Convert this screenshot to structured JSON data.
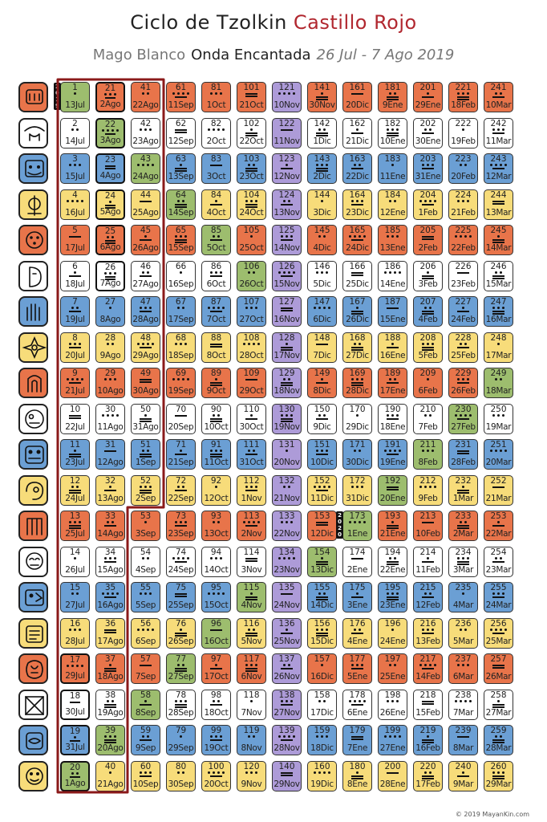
{
  "title": {
    "part1": "Ciclo de Tzolkin",
    "part2": "Castillo Rojo"
  },
  "subtitle": {
    "part1": "Mago Blanco",
    "part2": "Onda Encantada",
    "part3": "26 Jul - 7 Ago 2019"
  },
  "colors": {
    "red": "#e8744a",
    "white": "#ffffff",
    "blue": "#6b9fd4",
    "yellow": "#f7dc7a",
    "green": "#9dbd6e",
    "purple": "#ad9bd8",
    "wave": "#8b1a1a",
    "title_accent": "#b1272f",
    "subtitle_gray": "#777777"
  },
  "year_labels": [
    {
      "text": "2019",
      "col": 0,
      "row": 0
    },
    {
      "text": "2020",
      "col": 8,
      "row": 12
    }
  ],
  "today_kins": [
    21,
    22,
    23,
    24,
    25,
    26,
    17,
    18,
    19,
    20
  ],
  "seals": [
    {
      "name": "red-dragon-icon",
      "color": "red"
    },
    {
      "name": "white-wind-icon",
      "color": "white"
    },
    {
      "name": "blue-night-icon",
      "color": "blue"
    },
    {
      "name": "yellow-seed-icon",
      "color": "yellow"
    },
    {
      "name": "red-serpent-icon",
      "color": "red"
    },
    {
      "name": "white-worldbridger-icon",
      "color": "white"
    },
    {
      "name": "blue-hand-icon",
      "color": "blue"
    },
    {
      "name": "yellow-star-icon",
      "color": "yellow"
    },
    {
      "name": "red-moon-icon",
      "color": "red"
    },
    {
      "name": "white-dog-icon",
      "color": "white"
    },
    {
      "name": "blue-monkey-icon",
      "color": "blue"
    },
    {
      "name": "yellow-human-icon",
      "color": "yellow"
    },
    {
      "name": "red-skywalker-icon",
      "color": "red"
    },
    {
      "name": "white-wizard-icon",
      "color": "white"
    },
    {
      "name": "blue-eagle-icon",
      "color": "blue"
    },
    {
      "name": "yellow-warrior-icon",
      "color": "yellow"
    },
    {
      "name": "red-earth-icon",
      "color": "red"
    },
    {
      "name": "white-mirror-icon",
      "color": "white"
    },
    {
      "name": "blue-storm-icon",
      "color": "blue"
    },
    {
      "name": "yellow-sun-icon",
      "color": "yellow"
    }
  ],
  "column_colors": [
    [
      "green",
      "white",
      "blue",
      "yellow",
      "red",
      "white",
      "blue",
      "yellow",
      "red",
      "white",
      "blue",
      "yellow",
      "red",
      "white",
      "blue",
      "yellow",
      "red",
      "white",
      "blue",
      "green"
    ],
    [
      "red",
      "green",
      "blue",
      "yellow",
      "red",
      "white",
      "blue",
      "yellow",
      "red",
      "white",
      "blue",
      "yellow",
      "red",
      "white",
      "blue",
      "yellow",
      "red",
      "white",
      "green",
      "yellow"
    ],
    [
      "red",
      "white",
      "green",
      "yellow",
      "red",
      "white",
      "blue",
      "yellow",
      "red",
      "white",
      "blue",
      "yellow",
      "red",
      "white",
      "blue",
      "yellow",
      "red",
      "green",
      "blue",
      "yellow"
    ],
    [
      "red",
      "white",
      "blue",
      "green",
      "red",
      "white",
      "blue",
      "yellow",
      "red",
      "white",
      "blue",
      "yellow",
      "red",
      "white",
      "blue",
      "yellow",
      "green",
      "white",
      "blue",
      "yellow"
    ],
    [
      "red",
      "white",
      "blue",
      "yellow",
      "green",
      "white",
      "blue",
      "yellow",
      "red",
      "white",
      "blue",
      "yellow",
      "red",
      "white",
      "blue",
      "green",
      "red",
      "white",
      "blue",
      "yellow"
    ],
    [
      "red",
      "white",
      "blue",
      "yellow",
      "red",
      "green",
      "blue",
      "yellow",
      "red",
      "white",
      "blue",
      "yellow",
      "red",
      "white",
      "green",
      "yellow",
      "red",
      "white",
      "blue",
      "yellow"
    ],
    [
      "purple",
      "purple",
      "purple",
      "purple",
      "purple",
      "purple",
      "purple",
      "purple",
      "purple",
      "purple",
      "purple",
      "purple",
      "purple",
      "purple",
      "purple",
      "purple",
      "purple",
      "purple",
      "purple",
      "purple"
    ],
    [
      "red",
      "white",
      "blue",
      "yellow",
      "red",
      "white",
      "blue",
      "yellow",
      "red",
      "white",
      "blue",
      "yellow",
      "red",
      "green",
      "blue",
      "yellow",
      "red",
      "white",
      "blue",
      "yellow"
    ],
    [
      "red",
      "white",
      "blue",
      "yellow",
      "red",
      "white",
      "blue",
      "yellow",
      "red",
      "white",
      "blue",
      "yellow",
      "green",
      "white",
      "blue",
      "yellow",
      "red",
      "white",
      "blue",
      "yellow"
    ],
    [
      "red",
      "white",
      "blue",
      "yellow",
      "red",
      "white",
      "blue",
      "yellow",
      "red",
      "white",
      "blue",
      "green",
      "red",
      "white",
      "blue",
      "yellow",
      "red",
      "white",
      "blue",
      "yellow"
    ],
    [
      "red",
      "white",
      "blue",
      "yellow",
      "red",
      "white",
      "blue",
      "yellow",
      "red",
      "white",
      "green",
      "yellow",
      "red",
      "white",
      "blue",
      "yellow",
      "red",
      "white",
      "blue",
      "yellow"
    ],
    [
      "red",
      "white",
      "blue",
      "yellow",
      "red",
      "white",
      "blue",
      "yellow",
      "red",
      "green",
      "blue",
      "yellow",
      "red",
      "white",
      "blue",
      "yellow",
      "red",
      "white",
      "blue",
      "yellow"
    ],
    [
      "red",
      "white",
      "blue",
      "yellow",
      "red",
      "white",
      "blue",
      "yellow",
      "green",
      "white",
      "blue",
      "yellow",
      "red",
      "white",
      "blue",
      "yellow",
      "red",
      "white",
      "blue",
      "yellow"
    ]
  ],
  "column_dates": [
    [
      "13Jul",
      "14Jul",
      "15Jul",
      "16Jul",
      "17Jul",
      "18Jul",
      "19Jul",
      "20Jul",
      "21Jul",
      "22Jul",
      "23Jul",
      "24Jul",
      "25Jul",
      "26Jul",
      "27Jul",
      "28Jul",
      "29Jul",
      "30Jul",
      "31Jul",
      "1Ago"
    ],
    [
      "2Ago",
      "3Ago",
      "4Ago",
      "5Ago",
      "6Ago",
      "7Ago",
      "8Ago",
      "9Ago",
      "10Ago",
      "11Ago",
      "12Ago",
      "13Ago",
      "14Ago",
      "15Ago",
      "16Ago",
      "17Ago",
      "18Ago",
      "19Ago",
      "20Ago",
      "21Ago"
    ],
    [
      "22Ago",
      "23Ago",
      "24Ago",
      "25Ago",
      "26Ago",
      "27Ago",
      "28Ago",
      "29Ago",
      "30Ago",
      "31Ago",
      "1Sep",
      "2Sep",
      "3Sep",
      "4Sep",
      "5Sep",
      "6Sep",
      "7Sep",
      "8Sep",
      "9Sep",
      "10Sep"
    ],
    [
      "11Sep",
      "12Sep",
      "13Sep",
      "14Sep",
      "15Sep",
      "16Sep",
      "17Sep",
      "18Sep",
      "19Sep",
      "20Sep",
      "21Sep",
      "22Sep",
      "23Sep",
      "24Sep",
      "25Sep",
      "26Sep",
      "27Sep",
      "28Sep",
      "29Sep",
      "30Sep"
    ],
    [
      "1Oct",
      "2Oct",
      "3Oct",
      "4Oct",
      "5Oct",
      "6Oct",
      "7Oct",
      "8Oct",
      "9Oct",
      "10Oct",
      "11Oct",
      "12Oct",
      "13Oct",
      "14Oct",
      "15Oct",
      "16Oct",
      "17Oct",
      "18Oct",
      "19Oct",
      "20Oct"
    ],
    [
      "21Oct",
      "22Oct",
      "23Oct",
      "24Oct",
      "25Oct",
      "26Oct",
      "27Oct",
      "28Oct",
      "29Oct",
      "30Oct",
      "31Oct",
      "1Nov",
      "2Nov",
      "3Nov",
      "4Nov",
      "5Nov",
      "6Nov",
      "7Nov",
      "8Nov",
      "9Nov"
    ],
    [
      "10Nov",
      "11Nov",
      "12Nov",
      "13Nov",
      "14Nov",
      "15Nov",
      "16Nov",
      "17Nov",
      "18Nov",
      "19Nov",
      "20Nov",
      "21Nov",
      "22Nov",
      "23Nov",
      "24Nov",
      "25Nov",
      "26Nov",
      "27Nov",
      "28Nov",
      "29Nov"
    ],
    [
      "30Nov",
      "1Dic",
      "2Dic",
      "3Dic",
      "4Dic",
      "5Dic",
      "6Dic",
      "7Dic",
      "8Dic",
      "9Dic",
      "10Dic",
      "11Dic",
      "12Dic",
      "13Dic",
      "14Dic",
      "15Dic",
      "16Dic",
      "17Dic",
      "18Dic",
      "19Dic"
    ],
    [
      "20Dic",
      "21Dic",
      "22Dic",
      "23Dic",
      "24Dic",
      "25Dic",
      "26Dic",
      "27Dic",
      "28Dic",
      "29Dic",
      "30Dic",
      "31Dic",
      "1Ene",
      "2Ene",
      "3Ene",
      "4Ene",
      "5Ene",
      "6Ene",
      "7Ene",
      "8Ene"
    ],
    [
      "9Ene",
      "10Ene",
      "11Ene",
      "12Ene",
      "13Ene",
      "14Ene",
      "15Ene",
      "16Ene",
      "17Ene",
      "18Ene",
      "19Ene",
      "20Ene",
      "21Ene",
      "22Ene",
      "23Ene",
      "24Ene",
      "25Ene",
      "26Ene",
      "27Ene",
      "28Ene"
    ],
    [
      "29Ene",
      "30Ene",
      "31Ene",
      "1Feb",
      "2Feb",
      "3Feb",
      "4Feb",
      "5Feb",
      "6Feb",
      "7Feb",
      "8Feb",
      "9Feb",
      "10Feb",
      "11Feb",
      "12Feb",
      "13Feb",
      "14Feb",
      "15Feb",
      "16Feb",
      "17Feb"
    ],
    [
      "18Feb",
      "19Feb",
      "20Feb",
      "21Feb",
      "22Feb",
      "23Feb",
      "24Feb",
      "25Feb",
      "26Feb",
      "27Feb",
      "28Feb",
      "1Mar",
      "2Mar",
      "3Mar",
      "4Mar",
      "5Mar",
      "6Mar",
      "7Mar",
      "8Mar",
      "9Mar"
    ],
    [
      "10Mar",
      "11Mar",
      "12Mar",
      "13Mar",
      "14Mar",
      "15Mar",
      "16Mar",
      "17Mar",
      "18Mar",
      "19Mar",
      "20Mar",
      "21Mar",
      "22Mar",
      "23Mar",
      "24Mar",
      "25Mar",
      "26Mar",
      "27Mar",
      "28Mar",
      "29Mar"
    ]
  ],
  "copyright": "© 2019 MayanKin.com"
}
